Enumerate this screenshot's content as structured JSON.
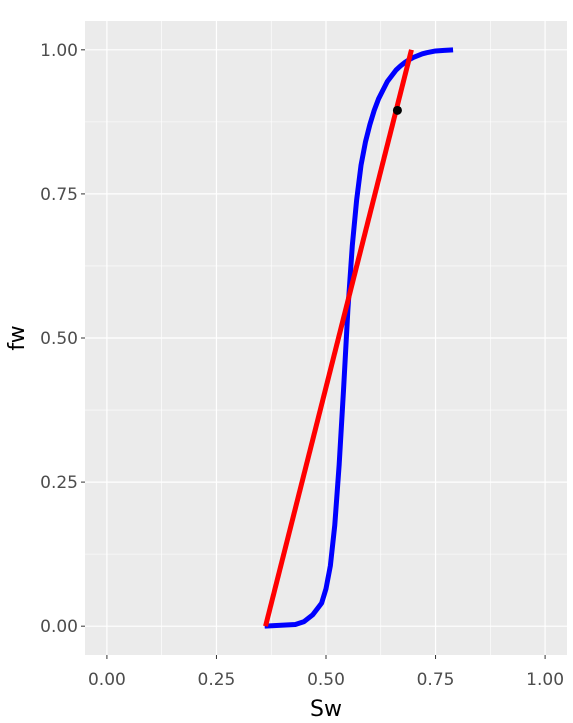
{
  "chart_data": {
    "type": "line",
    "title": "",
    "xlabel": "Sw",
    "ylabel": "fw",
    "xlim": [
      -0.05,
      1.05
    ],
    "ylim": [
      -0.05,
      1.05
    ],
    "x_ticks": [
      "0.00",
      "0.25",
      "0.50",
      "0.75",
      "1.00"
    ],
    "y_ticks": [
      "0.00",
      "0.25",
      "0.50",
      "0.75",
      "1.00"
    ],
    "grid": true,
    "legend": "none",
    "colors": {
      "panel": "#EBEBEB",
      "grid": "#FFFFFF",
      "curve": "#0000FF",
      "tangent": "#FF0000",
      "point": "#000000"
    },
    "series": [
      {
        "color": "#0000FF",
        "x": [
          0.36,
          0.43,
          0.45,
          0.47,
          0.49,
          0.5,
          0.51,
          0.52,
          0.53,
          0.54,
          0.55,
          0.56,
          0.57,
          0.58,
          0.59,
          0.6,
          0.61,
          0.62,
          0.63,
          0.64,
          0.65,
          0.66,
          0.67,
          0.68,
          0.69,
          0.7,
          0.71,
          0.72,
          0.73,
          0.75,
          0.77,
          0.79
        ],
        "y": [
          0.0,
          0.003,
          0.008,
          0.02,
          0.04,
          0.065,
          0.105,
          0.175,
          0.28,
          0.41,
          0.55,
          0.66,
          0.74,
          0.8,
          0.84,
          0.87,
          0.895,
          0.915,
          0.93,
          0.945,
          0.955,
          0.965,
          0.972,
          0.978,
          0.983,
          0.987,
          0.99,
          0.993,
          0.995,
          0.998,
          0.999,
          1.0
        ]
      },
      {
        "color": "#FF0000",
        "x": [
          0.362,
          0.695
        ],
        "y": [
          0.0,
          1.0
        ]
      }
    ],
    "points": [
      {
        "x": 0.663,
        "y": 0.895,
        "color": "#000000"
      }
    ]
  }
}
